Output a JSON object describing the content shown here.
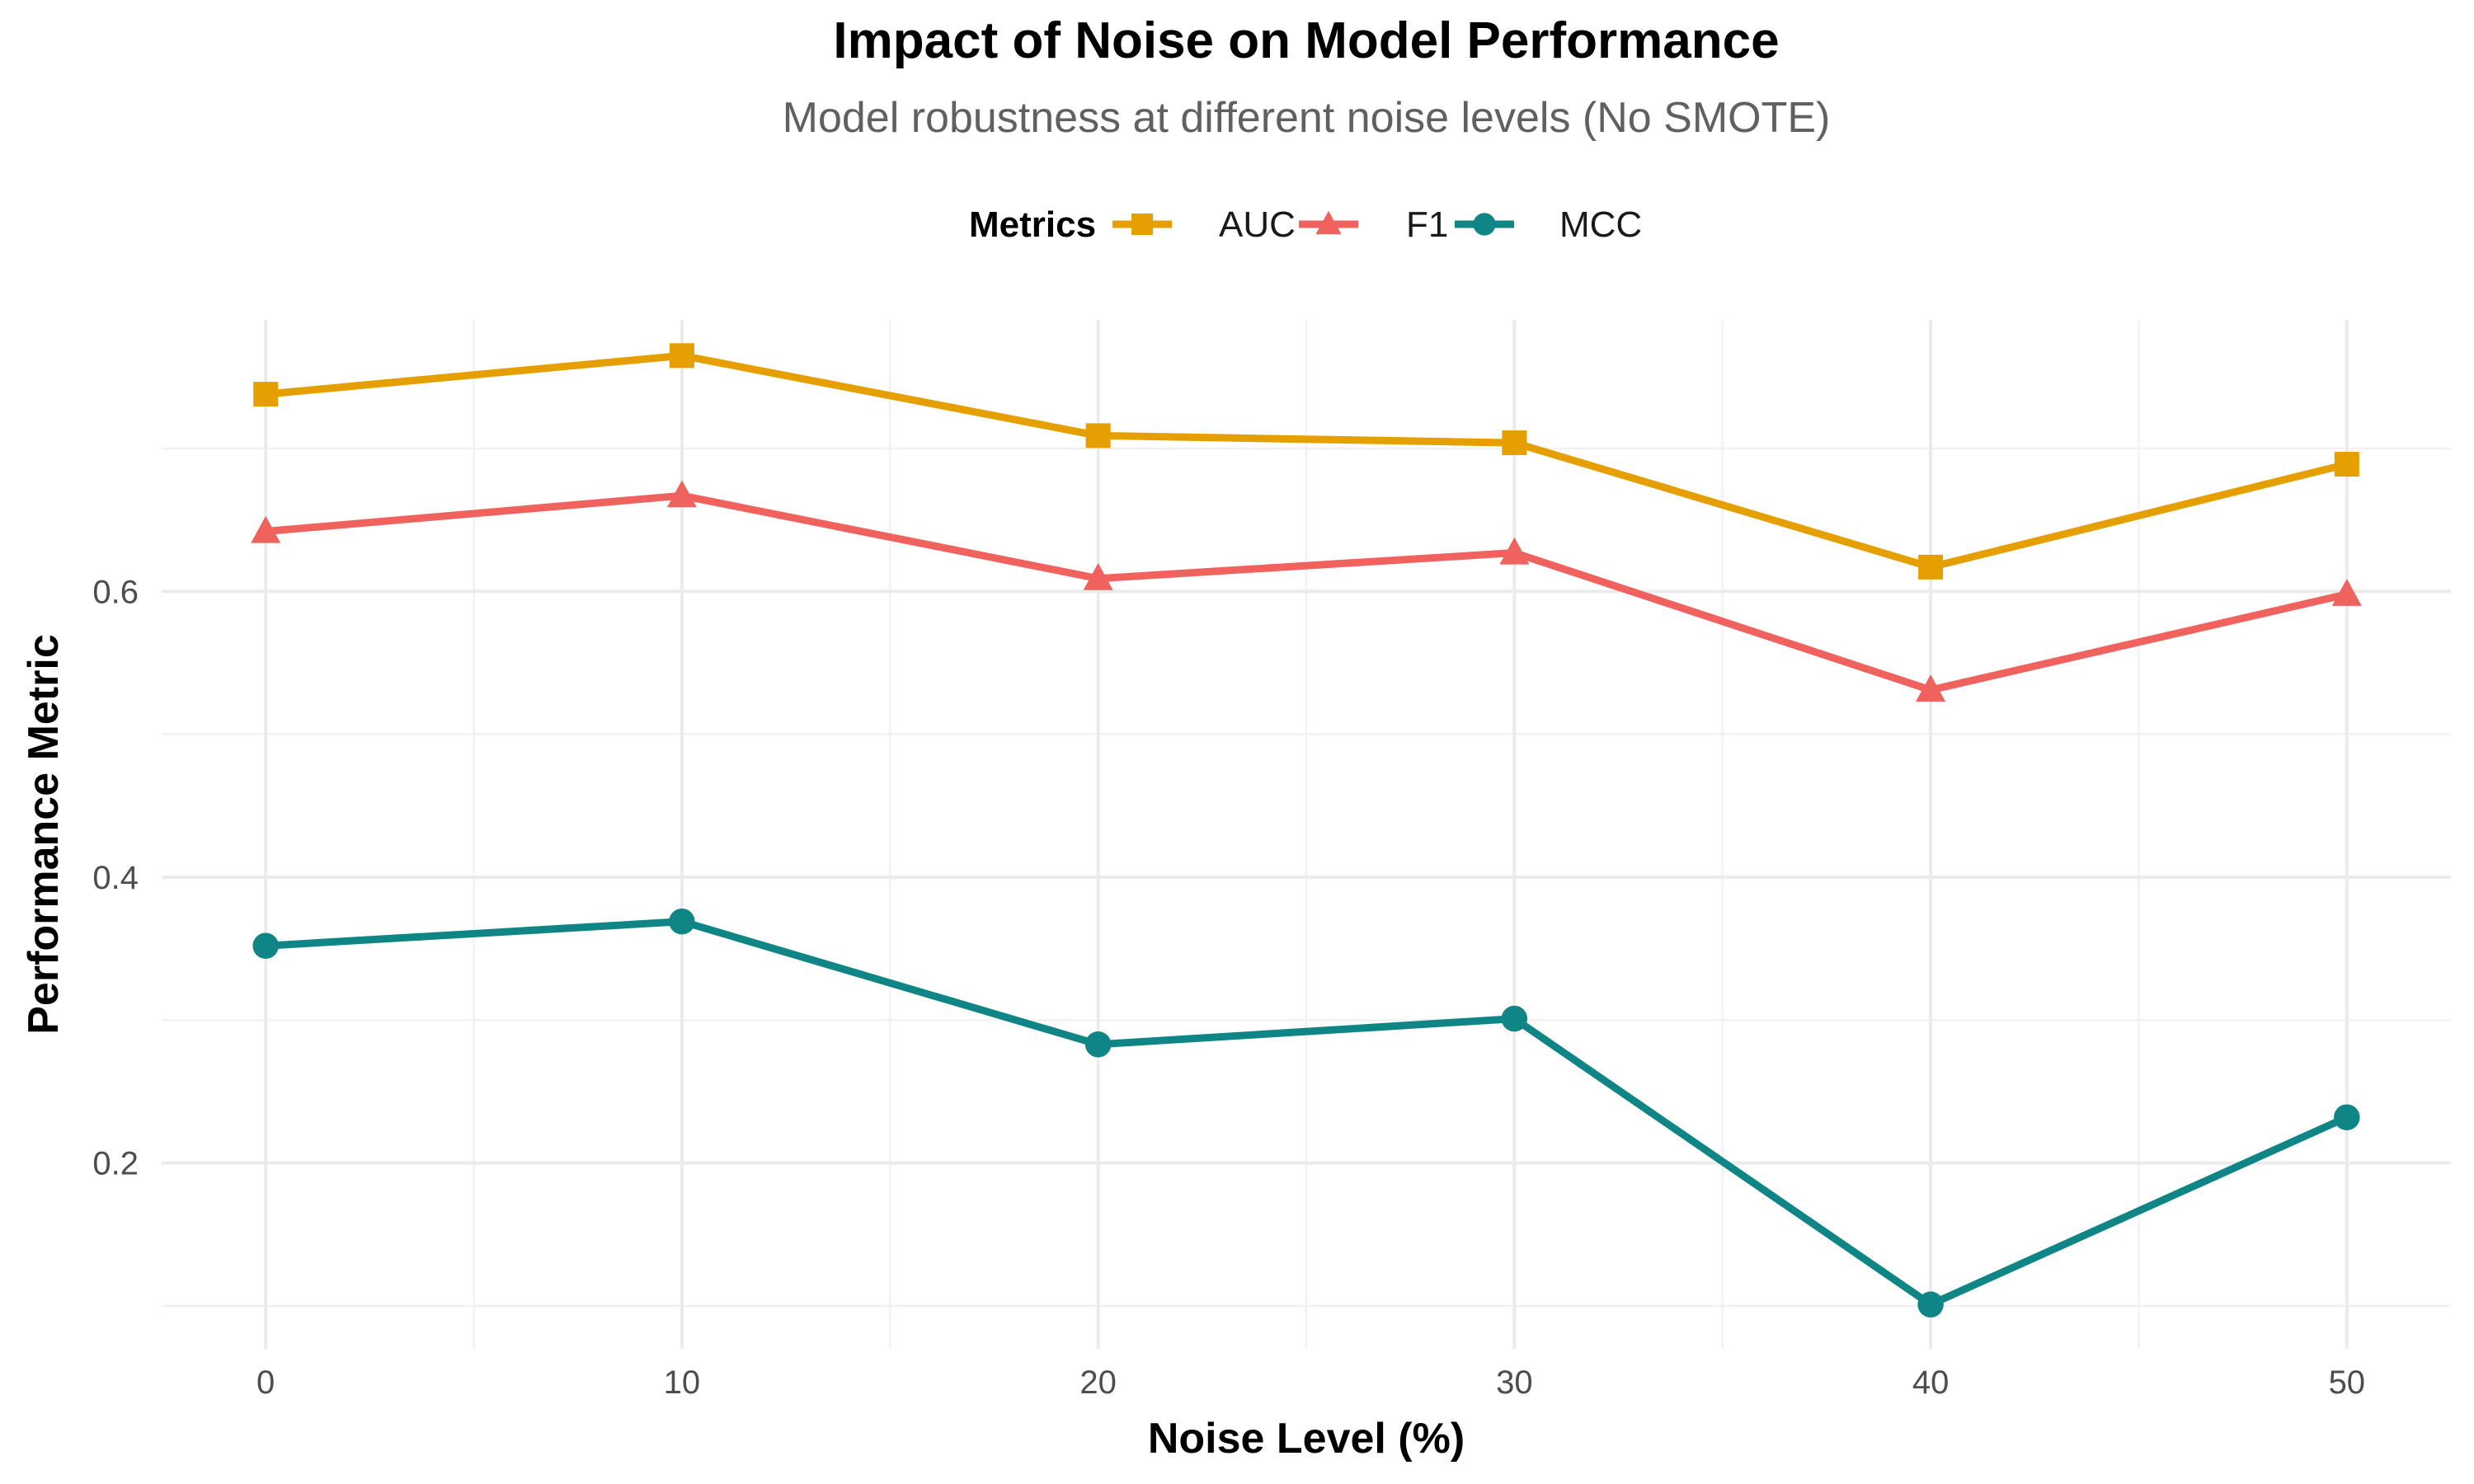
{
  "chart_data": {
    "type": "line",
    "title": "Impact of Noise on Model Performance",
    "subtitle": "Model robustness at different noise levels (No SMOTE)",
    "xlabel": "Noise Level (%)",
    "ylabel": "Performance Metric",
    "x": [
      0,
      10,
      20,
      30,
      40,
      50
    ],
    "x_ticks": [
      "0",
      "10",
      "20",
      "30",
      "40",
      "50"
    ],
    "y_ticks": [
      "0.2",
      "0.4",
      "0.6"
    ],
    "xlim": [
      -2.5,
      52.5
    ],
    "ylim": [
      0.07,
      0.79
    ],
    "grid": true,
    "legend": {
      "title": "Metrics",
      "position": "top"
    },
    "series": [
      {
        "name": "AUC",
        "values": [
          0.738,
          0.765,
          0.709,
          0.704,
          0.617,
          0.689
        ],
        "color": "#E69F00",
        "marker": "square"
      },
      {
        "name": "F1",
        "values": [
          0.642,
          0.667,
          0.609,
          0.627,
          0.531,
          0.598
        ],
        "color": "#F0625E",
        "marker": "triangle"
      },
      {
        "name": "MCC",
        "values": [
          0.352,
          0.369,
          0.283,
          0.301,
          0.101,
          0.232
        ],
        "color": "#0F8585",
        "marker": "circle"
      }
    ]
  }
}
